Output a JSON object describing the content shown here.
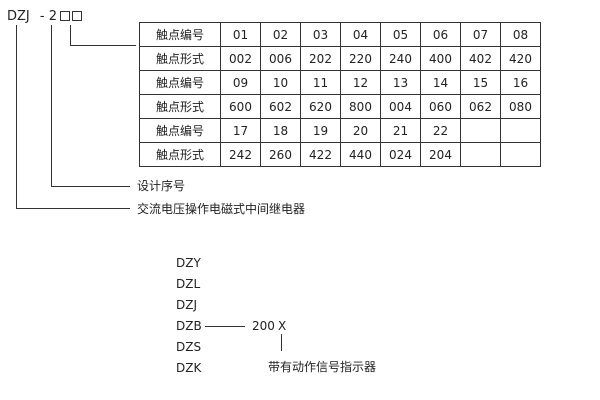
{
  "model": {
    "prefix": "DZJ",
    "sep": "-",
    "digit": "2"
  },
  "table": {
    "rows": [
      {
        "label": "触点编号",
        "cells": [
          "01",
          "02",
          "03",
          "04",
          "05",
          "06",
          "07",
          "08"
        ]
      },
      {
        "label": "触点形式",
        "cells": [
          "002",
          "006",
          "202",
          "220",
          "240",
          "400",
          "402",
          "420"
        ]
      },
      {
        "label": "触点编号",
        "cells": [
          "09",
          "10",
          "11",
          "12",
          "13",
          "14",
          "15",
          "16"
        ]
      },
      {
        "label": "触点形式",
        "cells": [
          "600",
          "602",
          "620",
          "800",
          "004",
          "060",
          "062",
          "080"
        ]
      },
      {
        "label": "触点编号",
        "cells": [
          "17",
          "18",
          "19",
          "20",
          "21",
          "22",
          "",
          ""
        ]
      },
      {
        "label": "触点形式",
        "cells": [
          "242",
          "260",
          "422",
          "440",
          "024",
          "204",
          "",
          ""
        ]
      }
    ]
  },
  "labels": {
    "design_no": "设计序号",
    "relay_type": "交流电压操作电磁式中间继电器"
  },
  "series": [
    "DZY",
    "DZL",
    "DZJ",
    "DZB",
    "DZS",
    "DZK"
  ],
  "suffix": {
    "code": "200",
    "x": "X",
    "note": "带有动作信号指示器"
  }
}
